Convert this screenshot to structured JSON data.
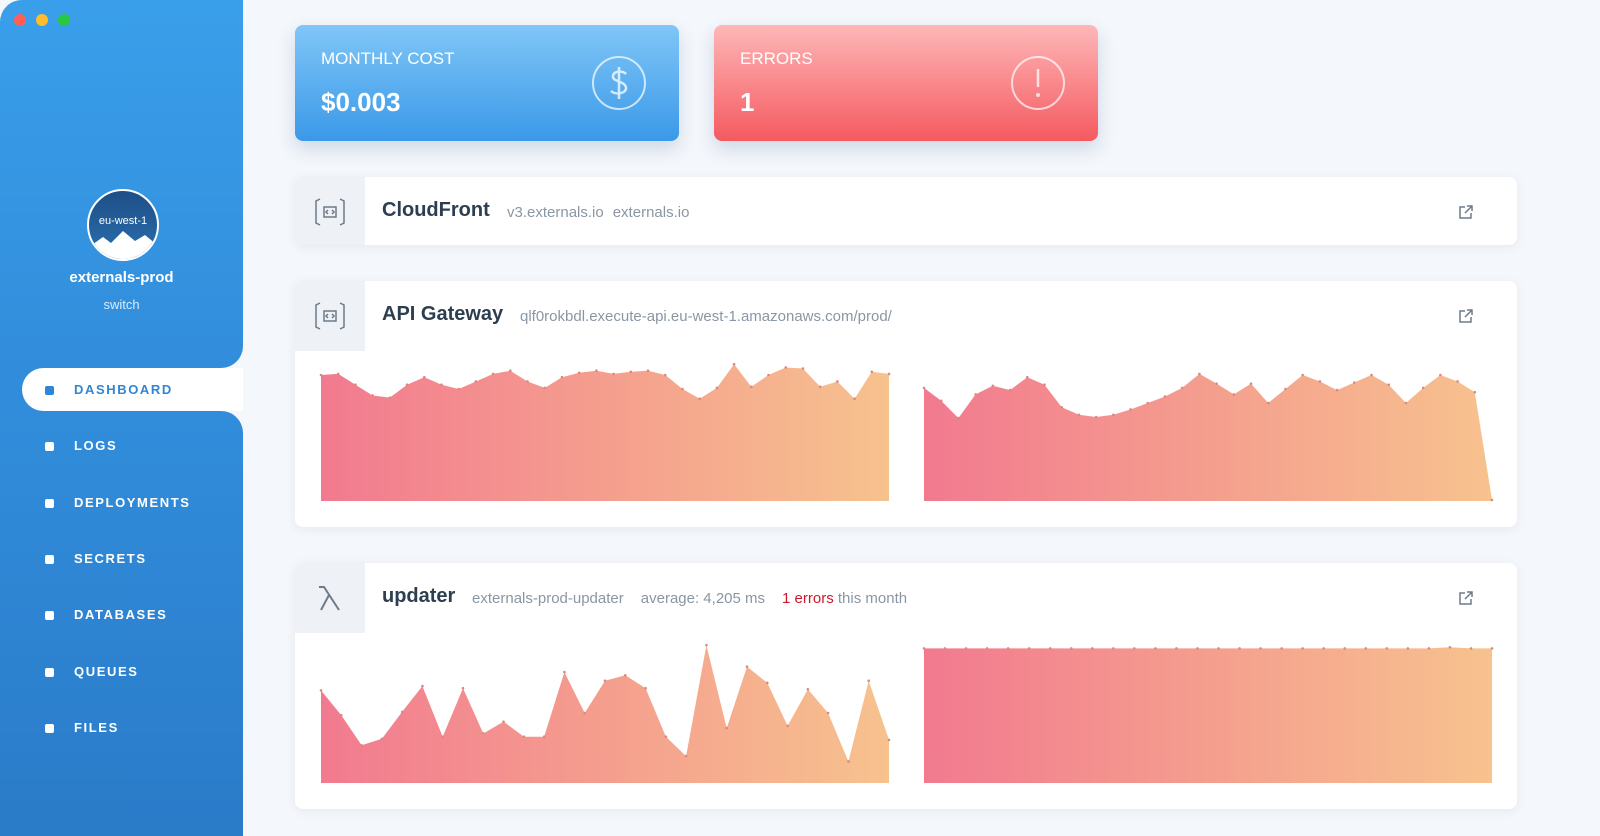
{
  "sidebar": {
    "region": "eu-west-1",
    "account": "externals-prod",
    "switch": "switch",
    "nav": [
      "DASHBOARD",
      "LOGS",
      "DEPLOYMENTS",
      "SECRETS",
      "DATABASES",
      "QUEUES",
      "FILES"
    ]
  },
  "cards": [
    {
      "label": "MONTHLY COST",
      "value": "$0.003"
    },
    {
      "label": "ERRORS",
      "value": "1"
    }
  ],
  "services": [
    {
      "name": "CloudFront",
      "details": [
        "v3.externals.io",
        "externals.io"
      ]
    },
    {
      "name": "API Gateway",
      "details": [
        "qlf0rokbdl.execute-api.eu-west-1.amazonaws.com/prod/"
      ],
      "charts": [
        {
          "type": "area",
          "ylim": [
            0,
            130
          ],
          "values": [
            117,
            118,
            108,
            98,
            96,
            108,
            115,
            108,
            104,
            111,
            118,
            121,
            111,
            105,
            115,
            119,
            121,
            118,
            120,
            121,
            117,
            104,
            95,
            105,
            127,
            106,
            117,
            124,
            123,
            106,
            111,
            95,
            120,
            118
          ]
        },
        {
          "type": "area",
          "ylim": [
            0,
            130
          ],
          "values": [
            105,
            93,
            77,
            99,
            107,
            103,
            115,
            108,
            87,
            80,
            78,
            80,
            85,
            91,
            97,
            105,
            118,
            109,
            99,
            109,
            91,
            104,
            117,
            111,
            103,
            110,
            117,
            108,
            91,
            105,
            117,
            111,
            101,
            1
          ]
        }
      ]
    },
    {
      "name": "updater",
      "details": [
        "externals-prod-updater",
        "average: 4,205 ms"
      ],
      "errors": "1 errors",
      "errors_suffix": "this month",
      "charts": [
        {
          "type": "area",
          "ylim": [
            0,
            130
          ],
          "values": [
            86,
            63,
            35,
            41,
            66,
            90,
            43,
            88,
            46,
            57,
            43,
            43,
            103,
            65,
            95,
            100,
            88,
            43,
            25,
            128,
            51,
            108,
            93,
            53,
            87,
            65,
            20,
            95,
            40
          ]
        },
        {
          "type": "area",
          "ylim": [
            0,
            130
          ],
          "values": [
            125,
            125,
            125,
            125,
            125,
            125,
            125,
            125,
            125,
            125,
            125,
            125,
            125,
            125,
            125,
            125,
            125,
            125,
            125,
            125,
            125,
            125,
            125,
            125,
            125,
            126,
            125,
            125
          ]
        }
      ]
    }
  ]
}
